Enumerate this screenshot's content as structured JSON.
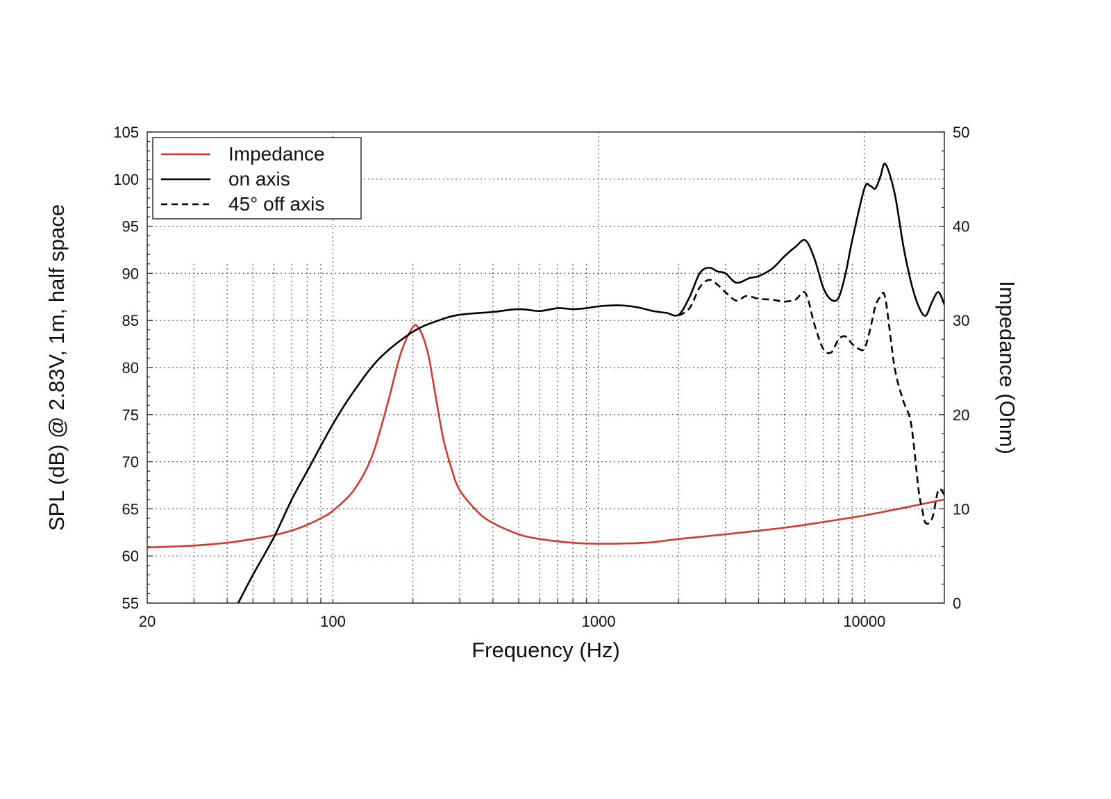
{
  "chart_data": {
    "type": "line",
    "xlabel": "Frequency (Hz)",
    "ylabel_left": "SPL (dB) @ 2.83V, 1m, half space",
    "ylabel_right": "Impedance (Ohm)",
    "x_scale": "log",
    "xlim": [
      20,
      20000
    ],
    "ylim_left": [
      55,
      105
    ],
    "ylim_right": [
      0,
      50
    ],
    "x_tick_labels": [
      "20",
      "100",
      "1000",
      "10000"
    ],
    "left_tick_labels": [
      "55",
      "60",
      "65",
      "70",
      "75",
      "80",
      "85",
      "90",
      "95",
      "100",
      "105"
    ],
    "right_tick_labels": [
      "0",
      "10",
      "20",
      "30",
      "40",
      "50"
    ],
    "grid": true,
    "legend_position": "top-left",
    "colors": {
      "impedance": "#d03a2c",
      "on_axis": "#000000",
      "off_axis": "#000000"
    },
    "series": [
      {
        "name": "Impedance",
        "axis": "right",
        "style": "solid",
        "x": [
          20,
          30,
          40,
          50,
          60,
          70,
          80,
          90,
          100,
          120,
          140,
          160,
          180,
          200,
          210,
          220,
          230,
          240,
          260,
          280,
          300,
          350,
          400,
          500,
          600,
          800,
          1000,
          1500,
          2000,
          3000,
          5000,
          7000,
          10000,
          14000,
          20000
        ],
        "y": [
          5.9,
          6.1,
          6.4,
          6.8,
          7.2,
          7.7,
          8.3,
          9.0,
          9.8,
          12.0,
          15.5,
          21.0,
          26.5,
          29.3,
          29.2,
          28.0,
          26.0,
          23.0,
          17.5,
          14.2,
          12.0,
          9.7,
          8.5,
          7.3,
          6.8,
          6.4,
          6.3,
          6.4,
          6.8,
          7.3,
          8.0,
          8.6,
          9.3,
          10.1,
          11.0
        ]
      },
      {
        "name": "on axis",
        "axis": "left",
        "style": "solid",
        "x": [
          44,
          50,
          60,
          70,
          80,
          100,
          120,
          150,
          200,
          250,
          300,
          400,
          500,
          600,
          700,
          800,
          900,
          1000,
          1200,
          1400,
          1600,
          1800,
          2000,
          2200,
          2400,
          2600,
          2800,
          3000,
          3300,
          3700,
          4000,
          4500,
          5000,
          5500,
          6000,
          6500,
          7000,
          7500,
          8000,
          8500,
          9000,
          10000,
          10500,
          11000,
          11500,
          12000,
          13000,
          14000,
          15000,
          16000,
          17000,
          18000,
          19000,
          20000
        ],
        "y": [
          55.0,
          58.0,
          62.0,
          66.0,
          69.0,
          74.0,
          77.5,
          81.0,
          83.8,
          85.0,
          85.6,
          85.9,
          86.2,
          86.0,
          86.3,
          86.2,
          86.3,
          86.5,
          86.6,
          86.4,
          86.0,
          85.8,
          85.6,
          87.5,
          90.0,
          90.6,
          90.2,
          90.0,
          89.0,
          89.5,
          89.7,
          90.5,
          91.8,
          92.8,
          93.5,
          91.5,
          88.5,
          87.2,
          87.4,
          90.0,
          93.5,
          99.0,
          99.3,
          99.0,
          100.3,
          101.6,
          98.5,
          93.0,
          89.0,
          86.5,
          85.5,
          87.0,
          88.0,
          86.7
        ]
      },
      {
        "name": "45° off axis",
        "axis": "left",
        "style": "dashed",
        "x": [
          2000,
          2200,
          2400,
          2600,
          2800,
          3000,
          3300,
          3600,
          4000,
          4500,
          5000,
          5500,
          6000,
          6500,
          7000,
          7500,
          8000,
          8500,
          9000,
          9500,
          10000,
          10500,
          11000,
          11500,
          12000,
          13000,
          14000,
          15000,
          16000,
          16500,
          17000,
          18000,
          19000,
          20000
        ],
        "y": [
          85.5,
          86.3,
          88.5,
          89.3,
          88.8,
          88.0,
          87.1,
          87.6,
          87.3,
          87.2,
          87.0,
          87.2,
          87.9,
          84.5,
          82.0,
          81.6,
          83.0,
          83.3,
          82.5,
          82.0,
          82.0,
          84.0,
          86.5,
          87.5,
          87.3,
          80.0,
          76.5,
          74.0,
          67.0,
          65.0,
          63.5,
          64.0,
          67.0,
          66.5
        ]
      }
    ]
  }
}
